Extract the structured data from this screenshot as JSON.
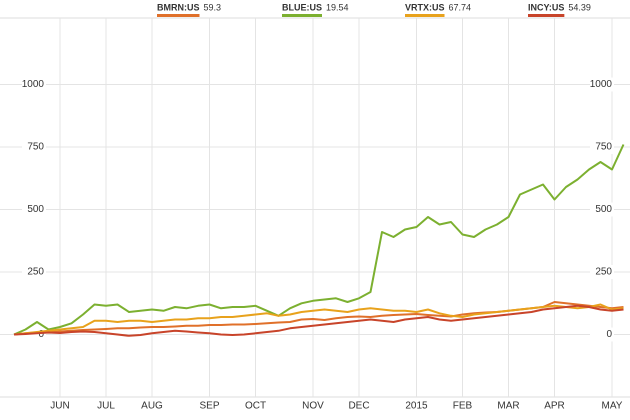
{
  "chart_data": {
    "type": "line",
    "categories": [
      null,
      null,
      null,
      null,
      "JUN",
      null,
      null,
      null,
      "JUL",
      null,
      null,
      null,
      "AUG",
      null,
      null,
      null,
      null,
      "SEP",
      null,
      null,
      null,
      "OCT",
      null,
      null,
      null,
      null,
      "NOV",
      null,
      null,
      null,
      "DEC",
      null,
      null,
      null,
      null,
      "2015",
      null,
      null,
      null,
      "FEB",
      null,
      null,
      null,
      "MAR",
      null,
      null,
      null,
      "APR",
      null,
      null,
      null,
      null,
      "MAY",
      null
    ],
    "series": [
      {
        "name": "BMRN:US",
        "last": 59.3,
        "color": "#e0702a",
        "values": [
          0,
          5,
          8,
          10,
          12,
          15,
          18,
          20,
          22,
          25,
          25,
          28,
          30,
          30,
          32,
          35,
          35,
          38,
          38,
          40,
          40,
          42,
          45,
          48,
          50,
          60,
          62,
          58,
          65,
          70,
          72,
          70,
          75,
          78,
          80,
          82,
          78,
          75,
          72,
          80,
          85,
          88,
          90,
          95,
          100,
          105,
          110,
          130,
          125,
          120,
          115,
          110,
          105,
          110
        ]
      },
      {
        "name": "BLUE:US",
        "last": 19.54,
        "color": "#7cb030",
        "values": [
          0,
          20,
          50,
          20,
          30,
          45,
          80,
          120,
          115,
          120,
          90,
          95,
          100,
          95,
          110,
          105,
          115,
          120,
          105,
          110,
          110,
          115,
          95,
          75,
          105,
          125,
          135,
          140,
          145,
          130,
          145,
          170,
          410,
          390,
          420,
          430,
          470,
          440,
          450,
          400,
          390,
          420,
          440,
          470,
          560,
          580,
          600,
          540,
          590,
          620,
          660,
          690,
          660,
          760
        ]
      },
      {
        "name": "VRTX:US",
        "last": 67.74,
        "color": "#e8a21c",
        "values": [
          0,
          5,
          10,
          15,
          20,
          25,
          30,
          55,
          55,
          50,
          55,
          55,
          50,
          55,
          60,
          60,
          65,
          65,
          70,
          70,
          75,
          80,
          85,
          75,
          80,
          90,
          95,
          100,
          95,
          90,
          100,
          105,
          100,
          95,
          95,
          90,
          100,
          85,
          75,
          70,
          80,
          85,
          90,
          95,
          100,
          105,
          110,
          115,
          110,
          105,
          110,
          120,
          100,
          105
        ]
      },
      {
        "name": "INCY:US",
        "last": 54.39,
        "color": "#c8442a",
        "values": [
          0,
          2,
          5,
          8,
          6,
          10,
          12,
          10,
          5,
          0,
          -5,
          -2,
          5,
          10,
          15,
          12,
          8,
          5,
          0,
          -2,
          0,
          5,
          10,
          15,
          25,
          30,
          35,
          40,
          45,
          50,
          55,
          60,
          55,
          50,
          60,
          65,
          70,
          60,
          55,
          60,
          65,
          70,
          75,
          80,
          85,
          90,
          100,
          105,
          110,
          115,
          110,
          100,
          95,
          100
        ]
      }
    ],
    "ylim": [
      -250,
      1250
    ],
    "yticks": [
      0,
      250,
      500,
      750,
      1000
    ],
    "grid": true
  }
}
